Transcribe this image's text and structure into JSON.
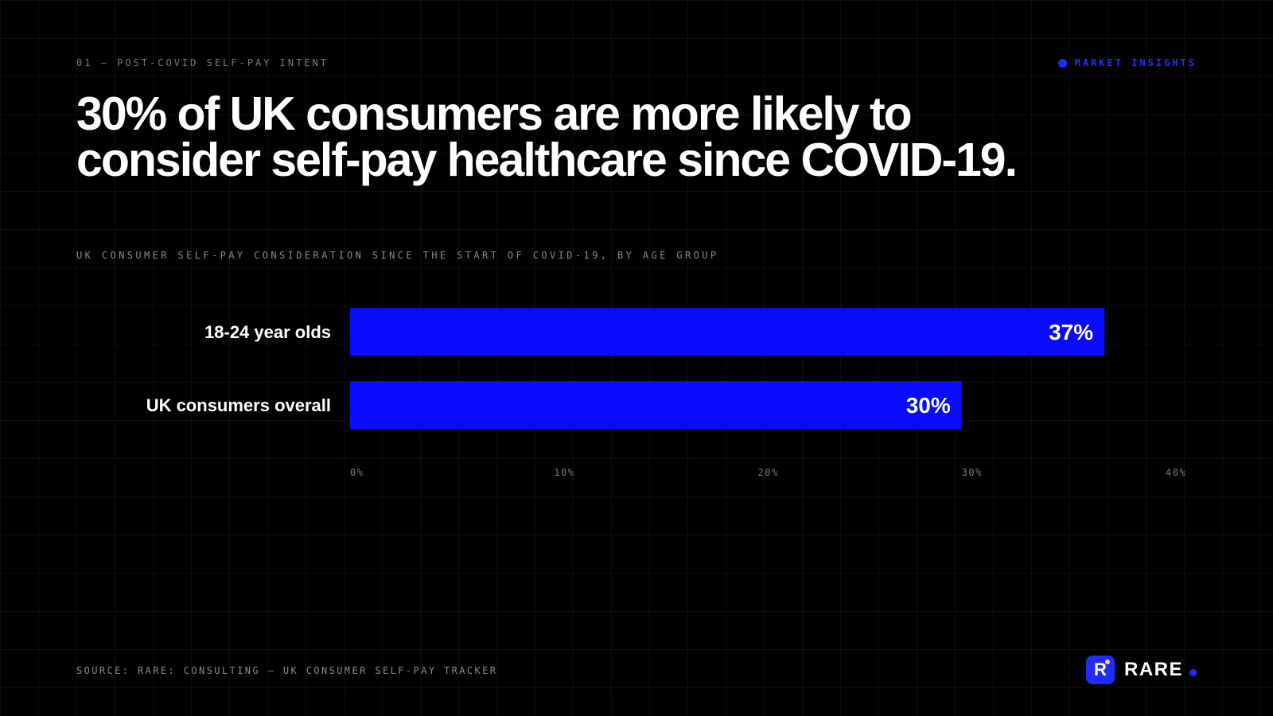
{
  "header": {
    "eyebrow": "01 — POST-COVID SELF-PAY INTENT",
    "badge": "MARKET INSIGHTS"
  },
  "headline": "30% of UK consumers are more likely to consider self-pay healthcare since COVID-19.",
  "footer": {
    "source": "SOURCE: RARE: CONSULTING — UK CONSUMER SELF-PAY TRACKER",
    "brand_mark": "R",
    "brand_name": "RARE"
  },
  "colors": {
    "accent": "#0a0aff",
    "background": "#000000",
    "logo_spot": "#ffd84a"
  },
  "icons": {
    "badge": "dot-icon",
    "logo": "rare-logo-icon"
  },
  "chart_data": {
    "type": "bar",
    "orientation": "horizontal",
    "title": "UK CONSUMER SELF-PAY CONSIDERATION SINCE THE START OF COVID-19, BY AGE GROUP",
    "categories": [
      "18-24 year olds",
      "UK consumers overall"
    ],
    "values": [
      37,
      30
    ],
    "value_labels": [
      "37%",
      "30%"
    ],
    "xlim": [
      0,
      40
    ],
    "x_ticks": [
      0,
      10,
      20,
      30,
      40
    ],
    "x_tick_labels": [
      "0%",
      "10%",
      "20%",
      "30%",
      "40%"
    ],
    "grid": false,
    "legend": "none",
    "bar_color": "#0a0aff"
  }
}
